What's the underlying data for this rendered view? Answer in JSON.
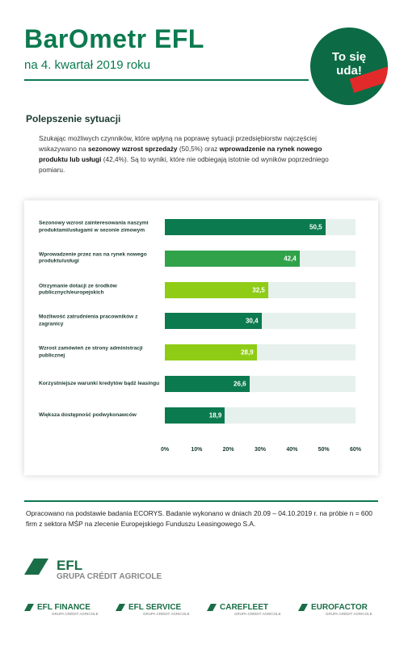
{
  "header": {
    "title": "BarOmetr EFL",
    "subtitle": "na 4. kwartał 2019 roku",
    "badge": "To się uda!"
  },
  "section_title": "Polepszenie sytuacji",
  "paragraph": [
    {
      "text": "Szukając możliwych czynników, które wpłyną na poprawę sytuacji przedsiębiorstw najczęściej wskazywano na ",
      "bold": false
    },
    {
      "text": "sezonowy wzrost sprzedaży",
      "bold": true
    },
    {
      "text": " (50,5%) oraz ",
      "bold": false
    },
    {
      "text": "wprowadzenie na rynek nowego produktu lub usługi",
      "bold": true
    },
    {
      "text": " (42,4%). Są to wyniki, które nie odbiegają istotnie od wyników poprzedniego pomiaru.",
      "bold": false
    }
  ],
  "chart_data": {
    "type": "bar",
    "orientation": "horizontal",
    "categories": [
      "Sezonowy wzrost zainteresowania naszymi produktami/usługami w sezonie zimowym",
      "Wprowadzenie przez nas na rynek nowego produktu/usługi",
      "Otrzymanie dotacji ze środków publicznych/europejskich",
      "Możliwość zatrudnienia pracowników z zagranicy",
      "Wzrost zamówień ze strony administracji publicznej",
      "Korzystniejsze warunki kredytów bądź leasingu",
      "Większa dostępność podwykonawców"
    ],
    "values": [
      50.5,
      42.4,
      32.5,
      30.4,
      28.9,
      26.6,
      18.9
    ],
    "value_labels": [
      "50,5",
      "42,4",
      "32,5",
      "30,4",
      "28,9",
      "26,6",
      "18,9"
    ],
    "colors": [
      "#0c7a4f",
      "#2fa24a",
      "#8fcc16",
      "#0c7a4f",
      "#8fcc16",
      "#0c7a4f",
      "#0c7a4f"
    ],
    "track_color": "#e6f0ec",
    "xlim": [
      0,
      60
    ],
    "xticks": [
      {
        "value": 0,
        "label": "0%"
      },
      {
        "value": 10,
        "label": "10%"
      },
      {
        "value": 20,
        "label": "20%"
      },
      {
        "value": 30,
        "label": "30%"
      },
      {
        "value": 40,
        "label": "40%"
      },
      {
        "value": 50,
        "label": "50%"
      },
      {
        "value": 60,
        "label": "60%"
      }
    ]
  },
  "footnote": "Opracowano na podstawie badania ECORYS. Badanie wykonano w dniach 20.09 – 04.10.2019 r. na próbie n = 600 firm z sektora MŚP na zlecenie Europejskiego Funduszu Leasingowego S.A.",
  "logo": {
    "name": "EFL",
    "group": "GRUPA CRÉDIT AGRICOLE"
  },
  "brands": [
    {
      "name": "EFL FINANCE",
      "group": "GRUPA CRÉDIT AGRICOLE"
    },
    {
      "name": "EFL SERVICE",
      "group": "GRUPA CRÉDIT AGRICOLE"
    },
    {
      "name": "CAREFLEET",
      "group": "GRUPA CRÉDIT AGRICOLE"
    },
    {
      "name": "EUROFACTOR",
      "group": "GRUPA CRÉDIT AGRICOLE"
    }
  ]
}
